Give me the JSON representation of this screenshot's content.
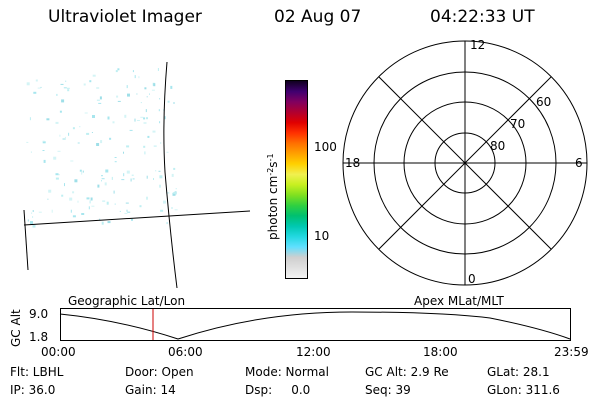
{
  "header": {
    "title": "Ultraviolet Imager",
    "date": "02 Aug 07",
    "time": "04:22:33 UT"
  },
  "colorbar": {
    "unit_label": "photon cm-2s-1",
    "ticks": [
      "100",
      "10"
    ],
    "colors": [
      "#f2f2f2",
      "#e0e0e0",
      "#cfcfcf",
      "#5fe0ff",
      "#22d8e0",
      "#00c8b0",
      "#00c070",
      "#30d040",
      "#80e020",
      "#c8f020",
      "#f0f050",
      "#ffd000",
      "#ffa000",
      "#ff7000",
      "#ff3000",
      "#e00000",
      "#b00030",
      "#800060",
      "#400070",
      "#100020"
    ]
  },
  "polar": {
    "mlt_labels": {
      "top": "12",
      "right": "6",
      "bottom": "0",
      "left": "18"
    },
    "lat_labels": [
      "60",
      "70",
      "80"
    ]
  },
  "altitude_plot": {
    "y_axis_label": "GC Alt",
    "y_ticks": [
      "9.0",
      "1.8"
    ],
    "left_title": "Geographic Lat/Lon",
    "right_title": "Apex MLat/MLT",
    "x_ticks": [
      "00:00",
      "06:00",
      "12:00",
      "18:00",
      "23:59"
    ]
  },
  "info": {
    "flt": "Flt: LBHL",
    "door": "Door: Open",
    "mode": "Mode: Normal",
    "gc_alt": "GC Alt: 2.9 Re",
    "glat": "GLat:  28.1",
    "ip": "IP: 36.0",
    "gain": "Gain: 14",
    "dsp": "Dsp:     0.0",
    "seq": "Seq: 39",
    "glon": "GLon: 311.6"
  }
}
